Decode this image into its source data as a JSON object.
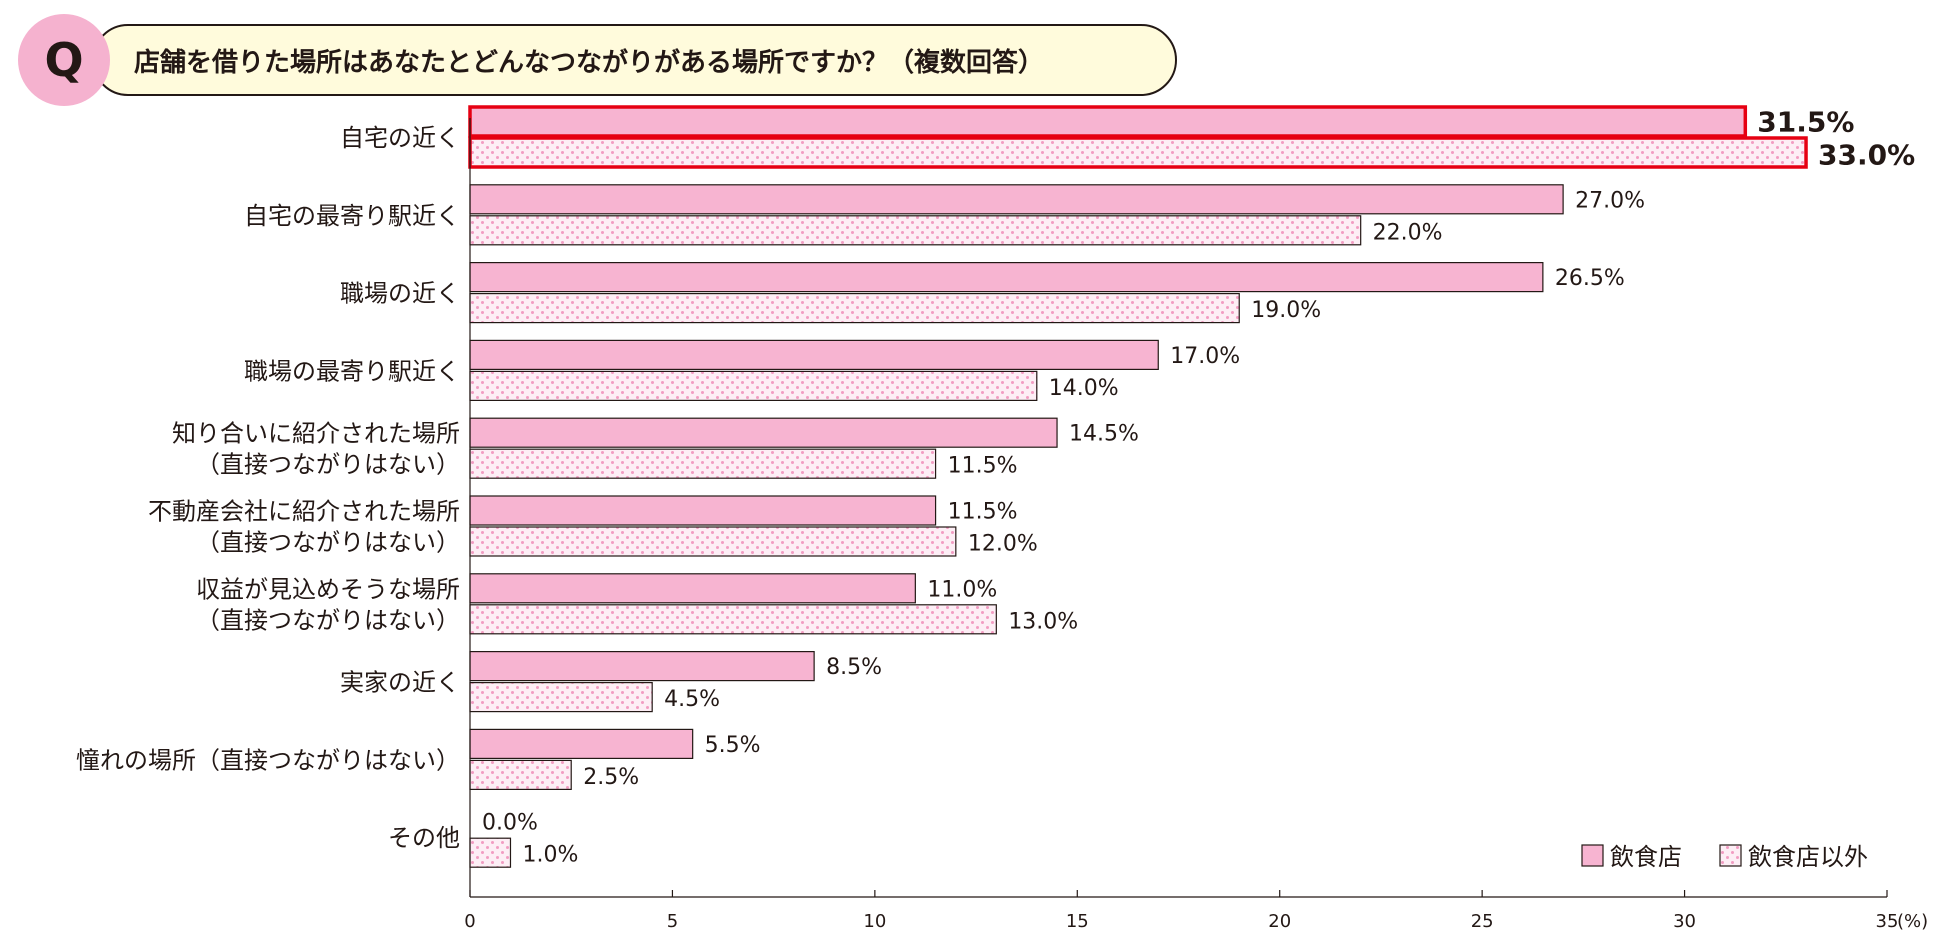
{
  "question": {
    "badge": "Q",
    "text": "店舗を借りた場所はあなたとどんなつながりがある場所ですか？（複数回答）"
  },
  "colors": {
    "series1_fill": "#f7b4d1",
    "series2_fill": "#fdeef5",
    "series2_dot": "#f29cc2",
    "highlight": "#e60012",
    "stroke": "#231815"
  },
  "chart_data": {
    "type": "bar",
    "orientation": "horizontal",
    "title": "店舗を借りた場所はあなたとどんなつながりがある場所ですか？（複数回答）",
    "categories": [
      [
        "自宅の近く"
      ],
      [
        "自宅の最寄り駅近く"
      ],
      [
        "職場の近く"
      ],
      [
        "職場の最寄り駅近く"
      ],
      [
        "知り合いに紹介された場所",
        "（直接つながりはない）"
      ],
      [
        "不動産会社に紹介された場所",
        "（直接つながりはない）"
      ],
      [
        "収益が見込めそうな場所",
        "（直接つながりはない）"
      ],
      [
        "実家の近く"
      ],
      [
        "憧れの場所（直接つながりはない）"
      ],
      [
        "その他"
      ]
    ],
    "series": [
      {
        "name": "飲食店",
        "values": [
          31.5,
          27.0,
          26.5,
          17.0,
          14.5,
          11.5,
          11.0,
          8.5,
          5.5,
          0.0
        ],
        "labels": [
          "31.5%",
          "27.0%",
          "26.5%",
          "17.0%",
          "14.5%",
          "11.5%",
          "11.0%",
          "8.5%",
          "5.5%",
          "0.0%"
        ]
      },
      {
        "name": "飲食店以外",
        "values": [
          33.0,
          22.0,
          19.0,
          14.0,
          11.5,
          12.0,
          13.0,
          4.5,
          2.5,
          1.0
        ],
        "labels": [
          "33.0%",
          "22.0%",
          "19.0%",
          "14.0%",
          "11.5%",
          "12.0%",
          "13.0%",
          "4.5%",
          "2.5%",
          "1.0%"
        ]
      }
    ],
    "highlight_category_index": 0,
    "xlim": [
      0,
      35
    ],
    "xticks": [
      "0",
      "5",
      "10",
      "15",
      "20",
      "25",
      "30",
      "35"
    ],
    "xticks_values": [
      0,
      5,
      10,
      15,
      20,
      25,
      30,
      35
    ],
    "unit_label": "(%)",
    "legend": [
      "飲食店",
      "飲食店以外"
    ],
    "legend_position": "bottom-right"
  }
}
